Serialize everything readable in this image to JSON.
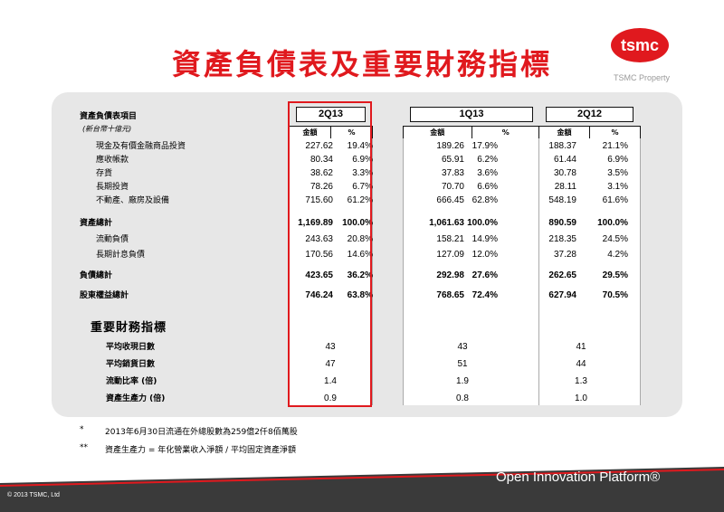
{
  "header": {
    "title": "資產負債表及重要財務指標",
    "property": "TSMC Property",
    "logo_text": "tsmc"
  },
  "table": {
    "section_label": "資產負債表項目",
    "unit_note": "(新台幣十億元)",
    "periods": [
      "2Q13",
      "1Q13",
      "2Q12"
    ],
    "col_amount": "金額",
    "col_pct": "%",
    "rows": [
      {
        "label": "現金及有價金融商品投資",
        "bold": false,
        "indent": true,
        "values": [
          "227.62",
          "19.4%",
          "189.26",
          "17.9%",
          "188.37",
          "21.1%"
        ]
      },
      {
        "label": "應收帳款",
        "bold": false,
        "indent": true,
        "values": [
          "80.34",
          "6.9%",
          "65.91",
          "6.2%",
          "61.44",
          "6.9%"
        ]
      },
      {
        "label": "存貨",
        "bold": false,
        "indent": true,
        "values": [
          "38.62",
          "3.3%",
          "37.83",
          "3.6%",
          "30.78",
          "3.5%"
        ]
      },
      {
        "label": "長期投資",
        "bold": false,
        "indent": true,
        "values": [
          "78.26",
          "6.7%",
          "70.70",
          "6.6%",
          "28.11",
          "3.1%"
        ]
      },
      {
        "label": "不動產、廠房及設備",
        "bold": false,
        "indent": true,
        "values": [
          "715.60",
          "61.2%",
          "666.45",
          "62.8%",
          "548.19",
          "61.6%"
        ]
      },
      {
        "label": "資產總計",
        "bold": true,
        "indent": false,
        "values": [
          "1,169.89",
          "100.0%",
          "1,061.63",
          "100.0%",
          "890.59",
          "100.0%"
        ]
      },
      {
        "label": "流動負債",
        "bold": false,
        "indent": true,
        "values": [
          "243.63",
          "20.8%",
          "158.21",
          "14.9%",
          "218.35",
          "24.5%"
        ]
      },
      {
        "label": "長期計息負債",
        "bold": false,
        "indent": true,
        "values": [
          "170.56",
          "14.6%",
          "127.09",
          "12.0%",
          "37.28",
          "4.2%"
        ]
      },
      {
        "label": "負債總計",
        "bold": true,
        "indent": false,
        "values": [
          "423.65",
          "36.2%",
          "292.98",
          "27.6%",
          "262.65",
          "29.5%"
        ]
      },
      {
        "label": "股東權益總計",
        "bold": true,
        "indent": false,
        "values": [
          "746.24",
          "63.8%",
          "768.65",
          "72.4%",
          "627.94",
          "70.5%"
        ]
      }
    ],
    "ratios_title": "重要財務指標",
    "ratios": [
      {
        "label": "平均收現日數",
        "values": [
          "43",
          "43",
          "41"
        ]
      },
      {
        "label": "平均銷貨日數",
        "values": [
          "47",
          "51",
          "44"
        ]
      },
      {
        "label": "流動比率 (倍)",
        "values": [
          "1.4",
          "1.9",
          "1.3"
        ]
      },
      {
        "label": "資產生產力 (倍)",
        "values": [
          "0.9",
          "0.8",
          "1.0"
        ]
      }
    ]
  },
  "notes": [
    {
      "mark": "*",
      "text": "2013年6月30日流通在外總股數為259億2仟8佰萬股"
    },
    {
      "mark": "**",
      "text": "資產生產力 = 年化營業收入淨額 / 平均固定資產淨額"
    }
  ],
  "footer": {
    "copyright": "© 2013 TSMC, Ltd",
    "tagline": "Open Innovation Platform®"
  },
  "colors": {
    "accent_red": "#e0191e",
    "panel_gray": "#e7e7e7",
    "footer_dark": "#3a3a3a"
  }
}
